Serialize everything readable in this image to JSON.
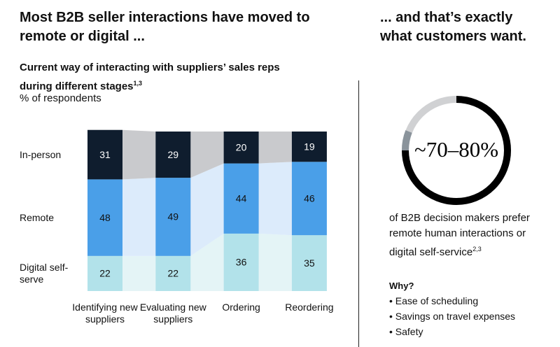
{
  "headline": "Most B2B seller interactions have moved to remote or digital ...",
  "chart_data": {
    "type": "bar",
    "stacked": true,
    "title": "Current way of interacting with suppliers’ sales reps during different stages",
    "title_note": "1,3",
    "subtitle": "% of respondents",
    "categories": [
      "Identifying new suppliers",
      "Evaluating new suppliers",
      "Ordering",
      "Reordering"
    ],
    "series": [
      {
        "name": "In-person",
        "color": "#0f1d2e",
        "band_color": "#c9cacd",
        "values": [
          31,
          29,
          20,
          19
        ]
      },
      {
        "name": "Remote",
        "color": "#4a9fe8",
        "band_color": "#dcebfb",
        "values": [
          48,
          49,
          44,
          46
        ]
      },
      {
        "name": "Digital self-serve",
        "color": "#b2e2ea",
        "band_color": "#e4f4f6",
        "values": [
          22,
          22,
          36,
          35
        ]
      }
    ]
  },
  "callout": {
    "heading": "... and that’s exactly what customers want.",
    "stat": "~70–80%",
    "text": "of B2B decision makers prefer remote human interactions or digital self-service",
    "text_note": "2,3",
    "why_title": "Why?",
    "reasons": [
      "Ease of scheduling",
      "Savings on travel expenses",
      "Safety"
    ]
  }
}
